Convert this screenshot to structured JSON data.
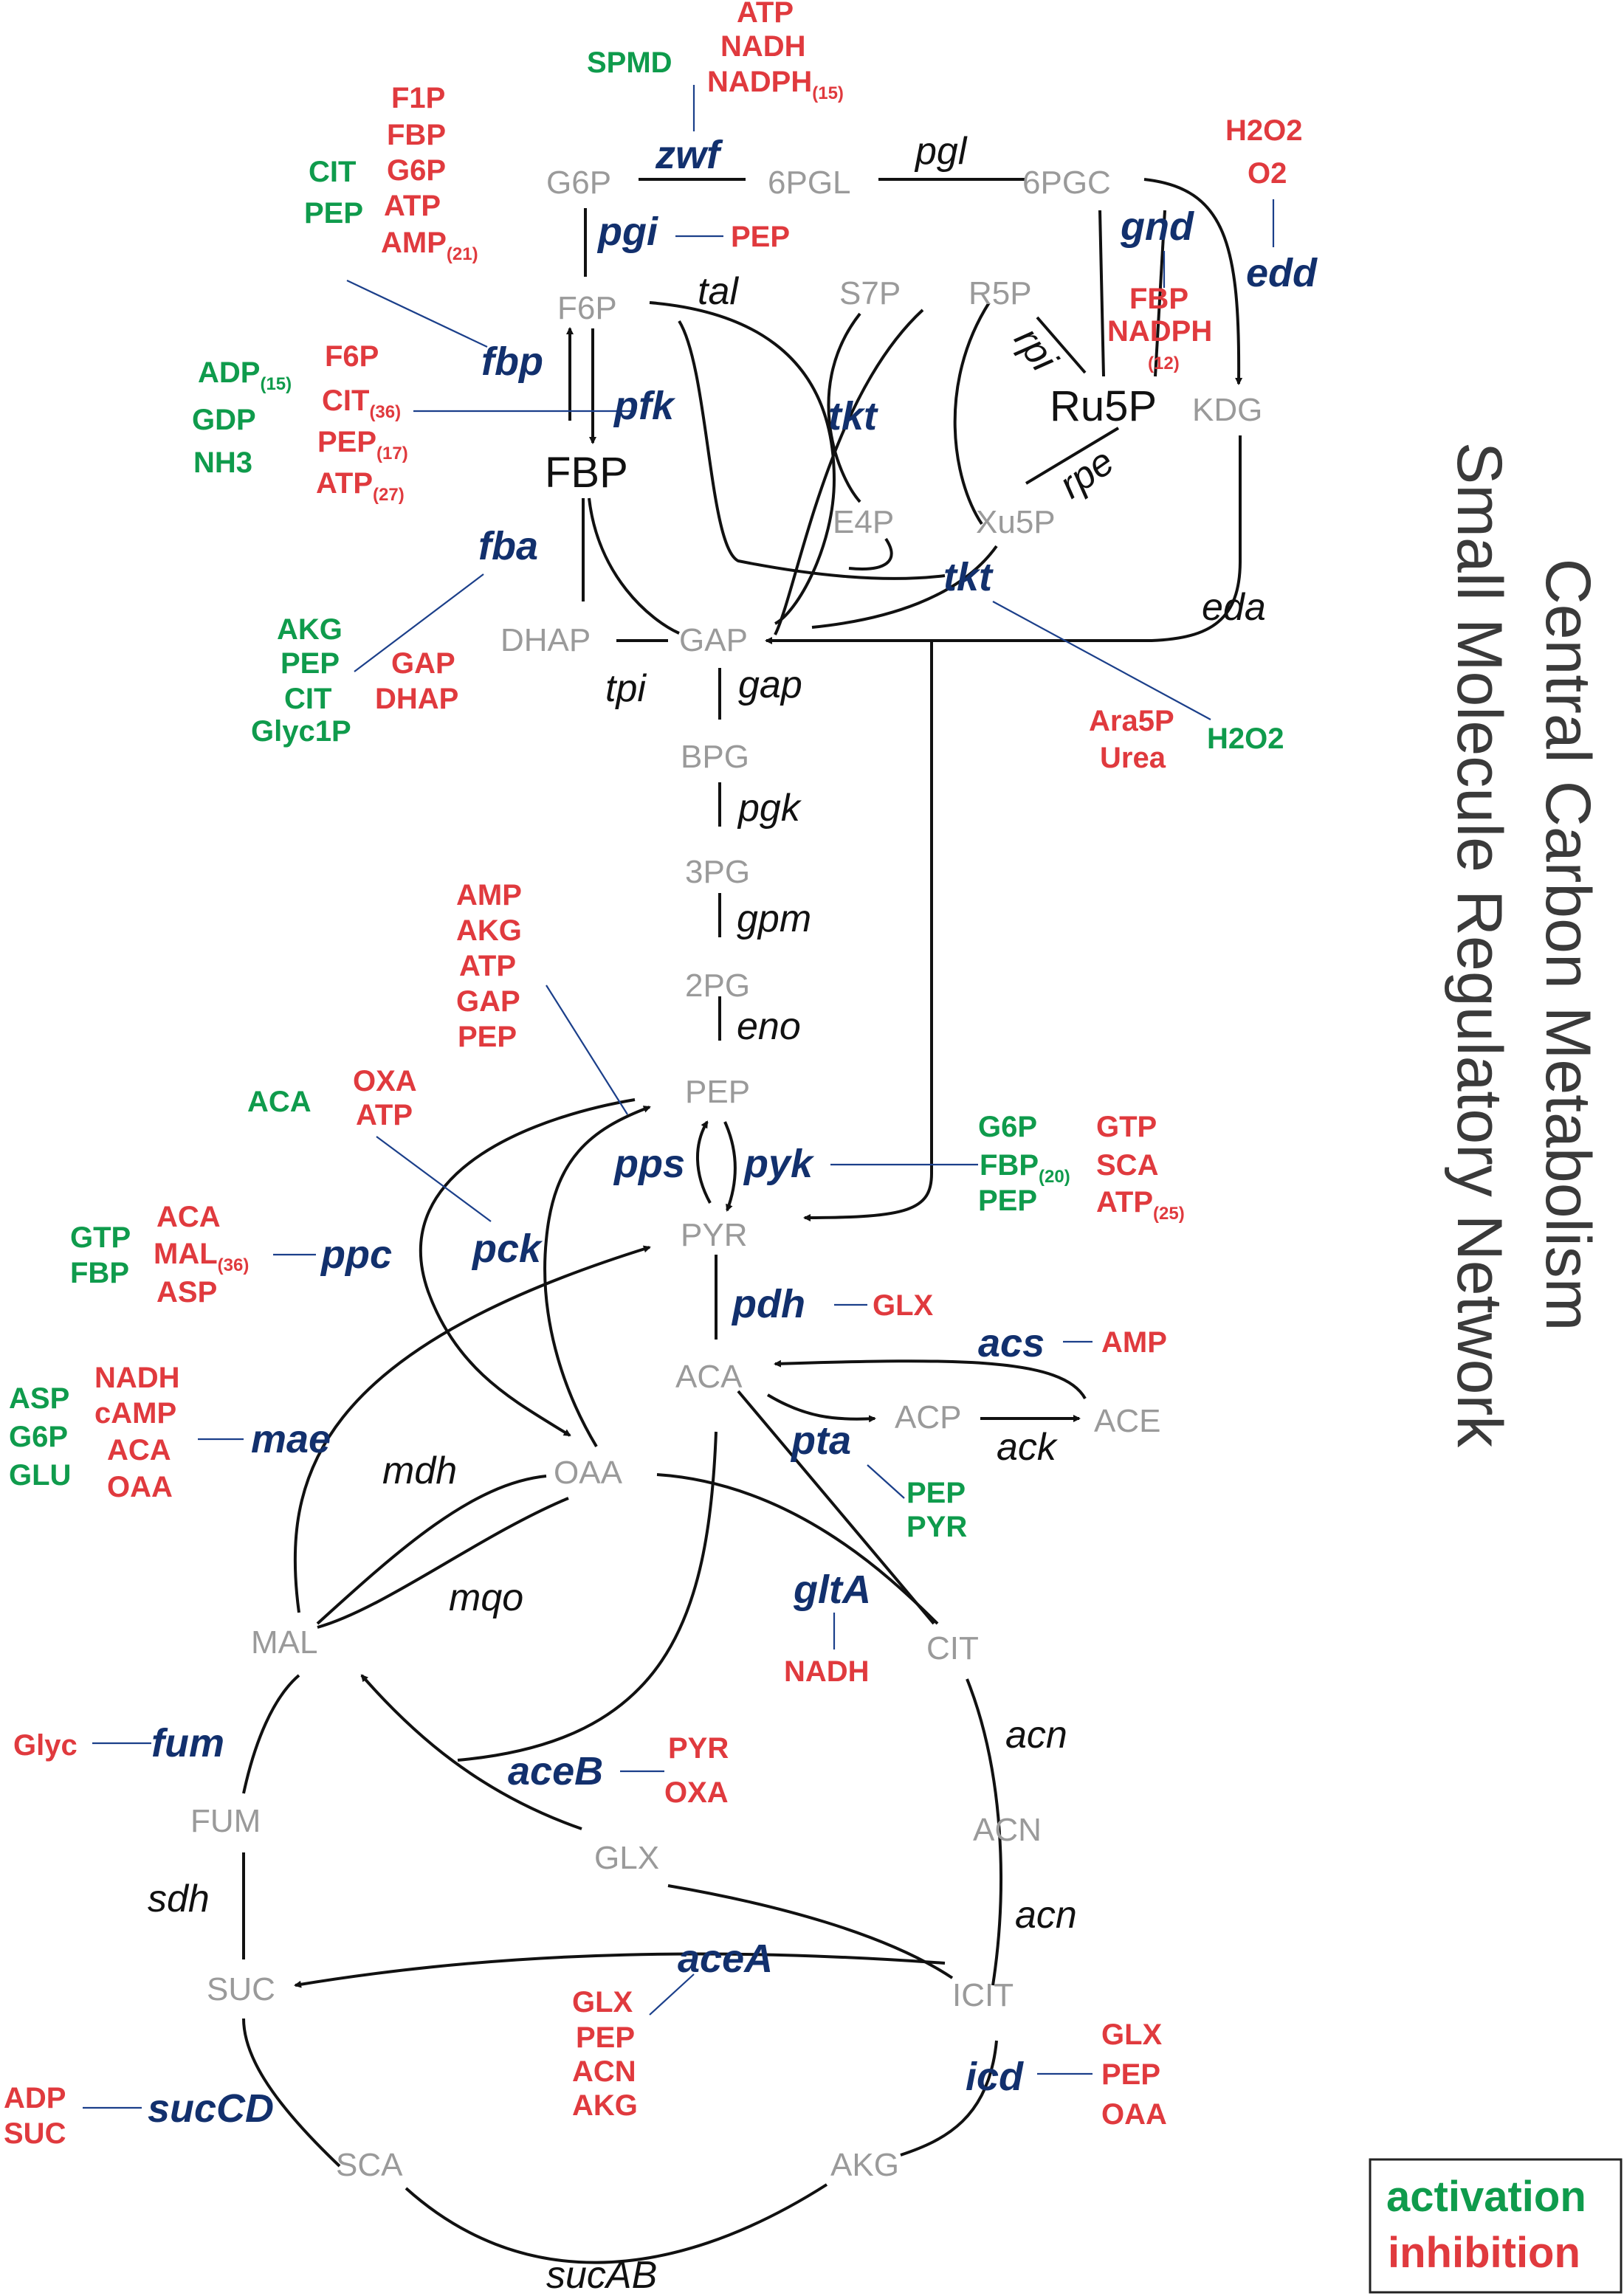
{
  "title": {
    "line1": "Central Carbon Metabolism",
    "line2": "Small Molecule Regulatory Network"
  },
  "legend": {
    "activation": "activation",
    "inhibition": "inhibition"
  },
  "colors": {
    "activation": "#0f9b4c",
    "inhibition": "#e03a3e",
    "regulated_enzyme": "#12306d",
    "metabolite": "#9a9a9a",
    "path": "#111111"
  },
  "metabolites": {
    "g6p": "G6P",
    "pgl6": "6PGL",
    "pgc6": "6PGC",
    "f6p": "F6P",
    "s7p": "S7P",
    "r5p": "R5P",
    "ru5p": "Ru5P",
    "kdg": "KDG",
    "fbp": "FBP",
    "e4p": "E4P",
    "xu5p": "Xu5P",
    "dhap": "DHAP",
    "gap": "GAP",
    "bpg": "BPG",
    "pg3": "3PG",
    "pg2": "2PG",
    "pep": "PEP",
    "pyr": "PYR",
    "aca": "ACA",
    "acp": "ACP",
    "ace": "ACE",
    "oaa": "OAA",
    "mal": "MAL",
    "cit": "CIT",
    "fum": "FUM",
    "acn": "ACN",
    "glx": "GLX",
    "suc": "SUC",
    "icit": "ICIT",
    "sca": "SCA",
    "akg": "AKG"
  },
  "enzymes": {
    "zwf": "zwf",
    "pgl": "pgl",
    "pgi": "pgi",
    "gnd": "gnd",
    "edd": "edd",
    "tal": "tal",
    "fbp": "fbp",
    "pfk": "pfk",
    "tkt1": "tkt",
    "rpi": "rpi",
    "rpe": "rpe",
    "fba": "fba",
    "tkt2": "tkt",
    "eda": "eda",
    "tpi": "tpi",
    "gap": "gap",
    "pgk": "pgk",
    "gpm": "gpm",
    "eno": "eno",
    "pps": "pps",
    "pyk": "pyk",
    "pck": "pck",
    "ppc": "ppc",
    "pdh": "pdh",
    "acs": "acs",
    "pta": "pta",
    "ack": "ack",
    "mae": "mae",
    "mdh": "mdh",
    "mqo": "mqo",
    "gltA": "gltA",
    "fum": "fum",
    "aceB": "aceB",
    "acn1": "acn",
    "acn2": "acn",
    "sdh": "sdh",
    "aceA": "aceA",
    "icd": "icd",
    "sucCD": "sucCD",
    "sucAB": "sucAB"
  },
  "regulators": {
    "zwf_act": [
      "SPMD"
    ],
    "zwf_inh": [
      "ATP",
      "NADH",
      "NADPH"
    ],
    "zwf_inh_sub": "(15)",
    "edd_inh": [
      "H2O2",
      "O2"
    ],
    "fbp_act": [
      "CIT",
      "PEP"
    ],
    "fbp_inh": [
      "F1P",
      "FBP",
      "G6P",
      "ATP",
      "AMP"
    ],
    "fbp_inh_sub": "(21)",
    "pgi_inh": [
      "PEP"
    ],
    "gnd_inh": [
      "FBP",
      "NADPH"
    ],
    "gnd_inh_sub": "(12)",
    "pfk_act": [
      "ADP",
      "GDP",
      "NH3"
    ],
    "pfk_act_sub": "(15)",
    "pfk_inh": [
      "F6P",
      "CIT",
      "PEP",
      "ATP"
    ],
    "pfk_inh_subs": [
      "(36)",
      "(17)",
      "(27)"
    ],
    "fba_act": [
      "AKG",
      "PEP",
      "CIT",
      "Glyc1P"
    ],
    "fba_inh": [
      "GAP",
      "DHAP"
    ],
    "tkt_inh": [
      "Ara5P",
      "Urea"
    ],
    "tkt_act": [
      "H2O2"
    ],
    "pps_inh": [
      "AMP",
      "AKG",
      "ATP",
      "GAP",
      "PEP"
    ],
    "pck_act": [
      "ACA"
    ],
    "pck_inh": [
      "OXA",
      "ATP"
    ],
    "pyk_act": [
      "G6P",
      "FBP",
      "PEP"
    ],
    "pyk_act_sub": "(20)",
    "pyk_inh": [
      "GTP",
      "SCA",
      "ATP"
    ],
    "pyk_inh_sub": "(25)",
    "ppc_act": [
      "GTP",
      "FBP"
    ],
    "ppc_inh": [
      "ACA",
      "MAL",
      "ASP"
    ],
    "ppc_inh_sub": "(36)",
    "pdh_inh": [
      "GLX"
    ],
    "acs_inh": [
      "AMP"
    ],
    "mae_act": [
      "ASP",
      "G6P",
      "GLU"
    ],
    "mae_inh": [
      "NADH",
      "cAMP",
      "ACA",
      "OAA"
    ],
    "pta_act": [
      "PEP",
      "PYR"
    ],
    "gltA_inh": [
      "NADH"
    ],
    "fum_inh": [
      "Glyc"
    ],
    "aceB_inh": [
      "PYR",
      "OXA"
    ],
    "aceA_inh": [
      "GLX",
      "PEP",
      "ACN",
      "AKG"
    ],
    "icd_inh": [
      "GLX",
      "PEP",
      "OAA"
    ],
    "sucCD_inh": [
      "ADP",
      "SUC"
    ]
  }
}
